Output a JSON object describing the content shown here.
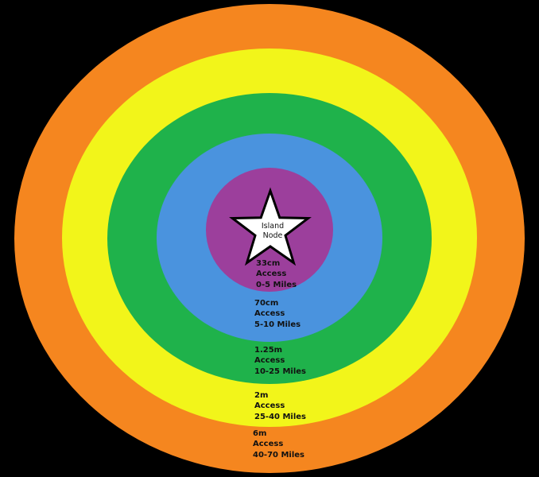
{
  "center": {
    "line1": "Island",
    "line2": "Node",
    "icon": "star-icon"
  },
  "rings": [
    {
      "color": "#f5861f",
      "band": "6m",
      "access": "Access",
      "range": "40-70 Miles"
    },
    {
      "color": "#f2f51a",
      "band": "2m",
      "access": "Access",
      "range": "25-40 Miles"
    },
    {
      "color": "#1fb24b",
      "band": "1.25m",
      "access": "Access",
      "range": "10-25 Miles"
    },
    {
      "color": "#4a93de",
      "band": "70cm",
      "access": "Access",
      "range": "5-10 Miles"
    },
    {
      "color": "#9c3f9c",
      "band": "33cm",
      "access": "Access",
      "range": "0-5 Miles"
    }
  ]
}
